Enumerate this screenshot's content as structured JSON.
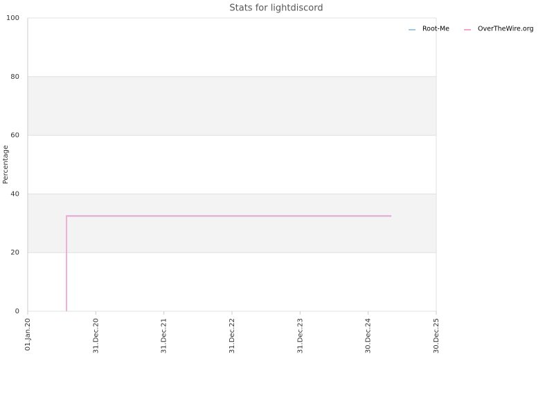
{
  "chart_data": {
    "type": "line",
    "title": "Stats for lightdiscord",
    "y_label": "Percentage",
    "ylim": [
      0,
      100
    ],
    "yticks": [
      0,
      20,
      40,
      60,
      80,
      100
    ],
    "xlim": [
      "2020-01-01",
      "2025-12-30"
    ],
    "xticks": [
      {
        "value": "2020-01-01",
        "label": "01.Jan.20"
      },
      {
        "value": "2020-12-31",
        "label": "31.Dec.20"
      },
      {
        "value": "2021-12-31",
        "label": "31.Dec.21"
      },
      {
        "value": "2022-12-31",
        "label": "31.Dec.22"
      },
      {
        "value": "2023-12-31",
        "label": "31.Dec.23"
      },
      {
        "value": "2024-12-30",
        "label": "30.Dec.24"
      },
      {
        "value": "2025-12-30",
        "label": "30.Dec.25"
      }
    ],
    "grid": true,
    "band_color": "#f3f3f3",
    "legend": "top-right",
    "series": [
      {
        "name": "Root-Me",
        "color": "#9ecae1",
        "x": [
          "2020-07-27",
          "2025-05-03"
        ],
        "values": [
          32.5,
          32.5
        ]
      },
      {
        "name": "OverTheWire.org",
        "color": "#f2a5cf",
        "x": [
          "2020-07-27",
          "2020-07-27",
          "2025-05-03"
        ],
        "values": [
          0,
          32.5,
          32.5
        ]
      }
    ]
  }
}
